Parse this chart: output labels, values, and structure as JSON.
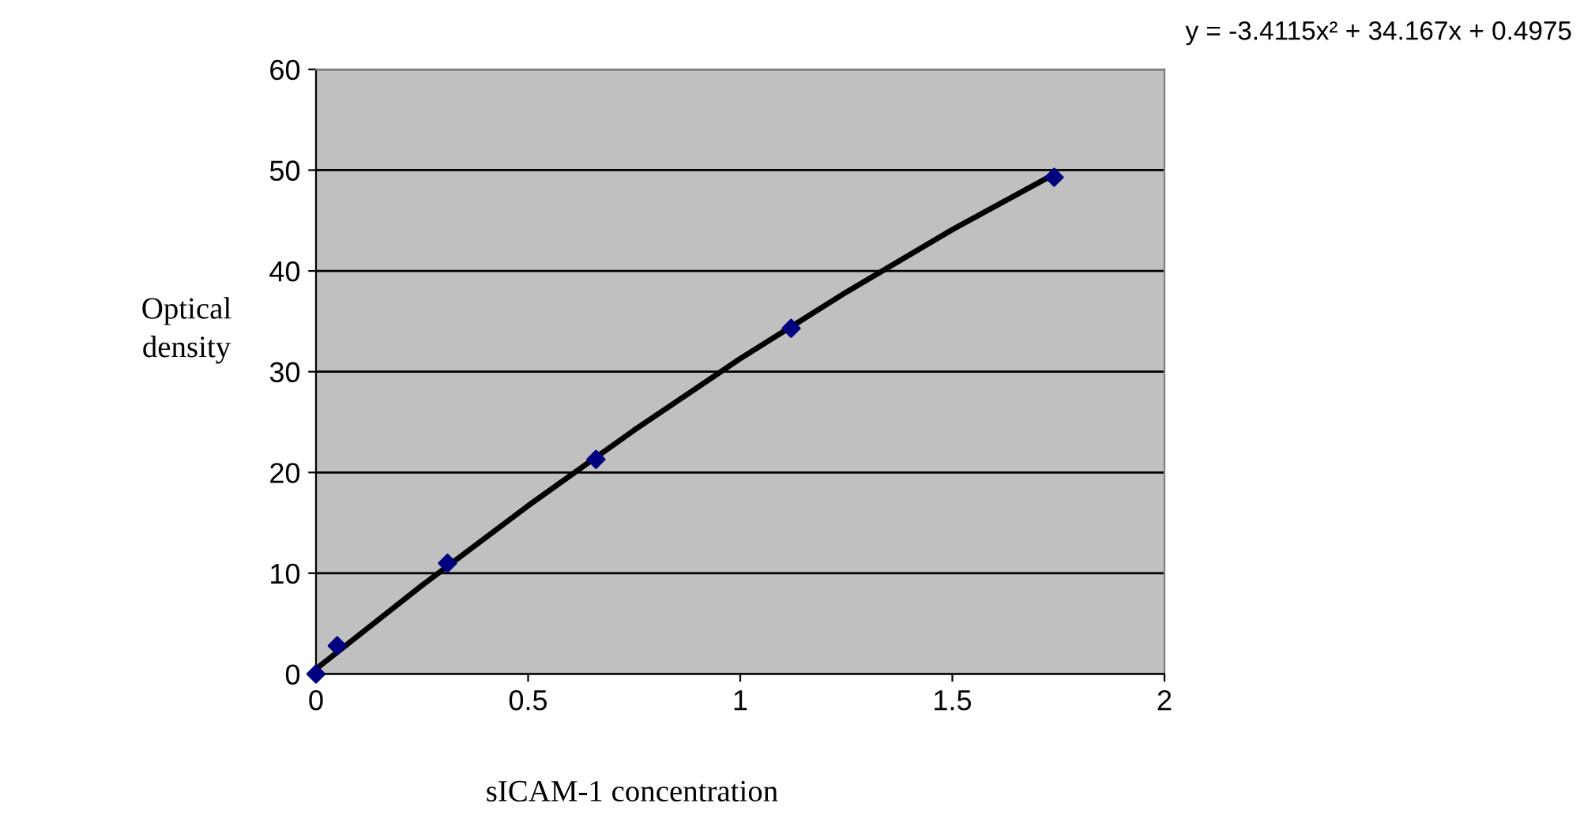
{
  "chart_data": {
    "type": "scatter",
    "xlabel": "sICAM-1 concentration",
    "ylabel": "Optical density",
    "annotations": [
      "y = -3.4115x² + 34.167x + 0.4975"
    ],
    "series": [
      {
        "color": "#000080",
        "marker": "diamond",
        "x": [
          0,
          0.05,
          0.31,
          0.66,
          1.12,
          1.74
        ],
        "values": [
          0,
          2.8,
          11,
          21.3,
          34.3,
          49.3
        ]
      },
      {
        "type": "line",
        "color": "#000000",
        "marker": "none",
        "x": [
          0,
          0.25,
          0.5,
          0.75,
          1,
          1.25,
          1.5,
          1.74
        ],
        "values": [
          0.5,
          8.8,
          16.7,
          24.2,
          31.3,
          37.9,
          44.1,
          49.6
        ]
      }
    ],
    "xlim": [
      0,
      2
    ],
    "ylim": [
      0,
      60
    ],
    "xticks": [
      0,
      0.5,
      1,
      1.5,
      2
    ],
    "yticks": [
      0,
      10,
      20,
      30,
      40,
      50,
      60
    ],
    "grid": "y"
  }
}
